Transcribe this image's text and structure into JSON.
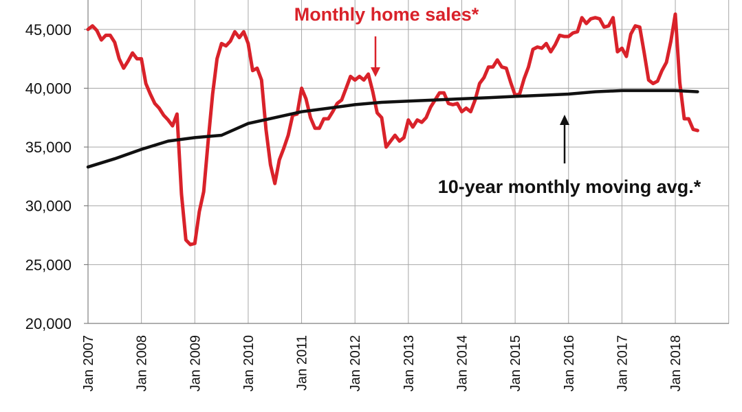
{
  "chart_data": {
    "type": "line",
    "ylim": [
      20000,
      47500
    ],
    "yticks": [
      20000,
      25000,
      30000,
      35000,
      40000,
      45000
    ],
    "ytick_labels": [
      "20,000",
      "25,000",
      "30,000",
      "35,000",
      "40,000",
      "45,000"
    ],
    "xtick_labels": [
      "Jan 2007",
      "Jan 2008",
      "Jan 2009",
      "Jan 2010",
      "Jan 2011",
      "Jan 2012",
      "Jan 2013",
      "Jan 2014",
      "Jan 2015",
      "Jan 2016",
      "Jan 2017",
      "Jan 2018"
    ],
    "grid": true,
    "series": [
      {
        "name": "Monthly home sales*",
        "color": "#d9222a",
        "points": [
          [
            "2007-01",
            45000
          ],
          [
            "2007-02",
            45300
          ],
          [
            "2007-03",
            44900
          ],
          [
            "2007-04",
            44100
          ],
          [
            "2007-05",
            44500
          ],
          [
            "2007-06",
            44500
          ],
          [
            "2007-07",
            43900
          ],
          [
            "2007-08",
            42500
          ],
          [
            "2007-09",
            41700
          ],
          [
            "2007-10",
            42300
          ],
          [
            "2007-11",
            43000
          ],
          [
            "2007-12",
            42500
          ],
          [
            "2008-01",
            42500
          ],
          [
            "2008-02",
            40400
          ],
          [
            "2008-03",
            39500
          ],
          [
            "2008-04",
            38700
          ],
          [
            "2008-05",
            38300
          ],
          [
            "2008-06",
            37700
          ],
          [
            "2008-07",
            37300
          ],
          [
            "2008-08",
            36800
          ],
          [
            "2008-09",
            37800
          ],
          [
            "2008-10",
            31000
          ],
          [
            "2008-11",
            27100
          ],
          [
            "2008-12",
            26700
          ],
          [
            "2009-01",
            26800
          ],
          [
            "2009-02",
            29500
          ],
          [
            "2009-03",
            31200
          ],
          [
            "2009-04",
            35500
          ],
          [
            "2009-05",
            39500
          ],
          [
            "2009-06",
            42500
          ],
          [
            "2009-07",
            43800
          ],
          [
            "2009-08",
            43600
          ],
          [
            "2009-09",
            44000
          ],
          [
            "2009-10",
            44800
          ],
          [
            "2009-11",
            44300
          ],
          [
            "2009-12",
            44800
          ],
          [
            "2010-01",
            43800
          ],
          [
            "2010-02",
            41500
          ],
          [
            "2010-03",
            41700
          ],
          [
            "2010-04",
            40700
          ],
          [
            "2010-05",
            36500
          ],
          [
            "2010-06",
            33500
          ],
          [
            "2010-07",
            31900
          ],
          [
            "2010-08",
            33900
          ],
          [
            "2010-09",
            34900
          ],
          [
            "2010-10",
            36000
          ],
          [
            "2010-11",
            37700
          ],
          [
            "2010-12",
            37800
          ],
          [
            "2011-01",
            40000
          ],
          [
            "2011-02",
            39100
          ],
          [
            "2011-03",
            37500
          ],
          [
            "2011-04",
            36600
          ],
          [
            "2011-05",
            36600
          ],
          [
            "2011-06",
            37400
          ],
          [
            "2011-07",
            37400
          ],
          [
            "2011-08",
            38000
          ],
          [
            "2011-09",
            38700
          ],
          [
            "2011-10",
            39000
          ],
          [
            "2011-11",
            40000
          ],
          [
            "2011-12",
            41000
          ],
          [
            "2012-01",
            40700
          ],
          [
            "2012-02",
            41000
          ],
          [
            "2012-03",
            40700
          ],
          [
            "2012-04",
            41200
          ],
          [
            "2012-05",
            39700
          ],
          [
            "2012-06",
            37900
          ],
          [
            "2012-07",
            37500
          ],
          [
            "2012-08",
            35000
          ],
          [
            "2012-09",
            35500
          ],
          [
            "2012-10",
            36000
          ],
          [
            "2012-11",
            35500
          ],
          [
            "2012-12",
            35800
          ],
          [
            "2013-01",
            37300
          ],
          [
            "2013-02",
            36700
          ],
          [
            "2013-03",
            37300
          ],
          [
            "2013-04",
            37100
          ],
          [
            "2013-05",
            37500
          ],
          [
            "2013-06",
            38400
          ],
          [
            "2013-07",
            39000
          ],
          [
            "2013-08",
            39600
          ],
          [
            "2013-09",
            39600
          ],
          [
            "2013-10",
            38700
          ],
          [
            "2013-11",
            38600
          ],
          [
            "2013-12",
            38700
          ],
          [
            "2014-01",
            38000
          ],
          [
            "2014-02",
            38300
          ],
          [
            "2014-03",
            38000
          ],
          [
            "2014-04",
            39000
          ],
          [
            "2014-05",
            40400
          ],
          [
            "2014-06",
            40900
          ],
          [
            "2014-07",
            41800
          ],
          [
            "2014-08",
            41800
          ],
          [
            "2014-09",
            42400
          ],
          [
            "2014-10",
            41800
          ],
          [
            "2014-11",
            41700
          ],
          [
            "2014-12",
            40500
          ],
          [
            "2015-01",
            39400
          ],
          [
            "2015-02",
            39500
          ],
          [
            "2015-03",
            40800
          ],
          [
            "2015-04",
            41800
          ],
          [
            "2015-05",
            43300
          ],
          [
            "2015-06",
            43500
          ],
          [
            "2015-07",
            43400
          ],
          [
            "2015-08",
            43800
          ],
          [
            "2015-09",
            43100
          ],
          [
            "2015-10",
            43700
          ],
          [
            "2015-11",
            44500
          ],
          [
            "2015-12",
            44400
          ],
          [
            "2016-01",
            44400
          ],
          [
            "2016-02",
            44700
          ],
          [
            "2016-03",
            44800
          ],
          [
            "2016-04",
            46000
          ],
          [
            "2016-05",
            45500
          ],
          [
            "2016-06",
            45900
          ],
          [
            "2016-07",
            46000
          ],
          [
            "2016-08",
            45900
          ],
          [
            "2016-09",
            45200
          ],
          [
            "2016-10",
            45300
          ],
          [
            "2016-11",
            46000
          ],
          [
            "2016-12",
            43100
          ],
          [
            "2017-01",
            43400
          ],
          [
            "2017-02",
            42700
          ],
          [
            "2017-03",
            44600
          ],
          [
            "2017-04",
            45300
          ],
          [
            "2017-05",
            45200
          ],
          [
            "2017-06",
            43000
          ],
          [
            "2017-07",
            40700
          ],
          [
            "2017-08",
            40400
          ],
          [
            "2017-09",
            40600
          ],
          [
            "2017-10",
            41500
          ],
          [
            "2017-11",
            42200
          ],
          [
            "2017-12",
            44000
          ],
          [
            "2018-01",
            46300
          ],
          [
            "2018-02",
            40500
          ],
          [
            "2018-03",
            37400
          ],
          [
            "2018-04",
            37400
          ],
          [
            "2018-05",
            36500
          ],
          [
            "2018-06",
            36400
          ]
        ]
      },
      {
        "name": "10-year monthly moving avg.*",
        "color": "#111111",
        "points": [
          [
            "2007-01",
            33300
          ],
          [
            "2007-07",
            34000
          ],
          [
            "2008-01",
            34800
          ],
          [
            "2008-07",
            35500
          ],
          [
            "2009-01",
            35800
          ],
          [
            "2009-07",
            36000
          ],
          [
            "2010-01",
            37000
          ],
          [
            "2010-07",
            37500
          ],
          [
            "2011-01",
            38000
          ],
          [
            "2011-07",
            38300
          ],
          [
            "2012-01",
            38600
          ],
          [
            "2012-07",
            38800
          ],
          [
            "2013-01",
            38900
          ],
          [
            "2013-07",
            39000
          ],
          [
            "2014-01",
            39100
          ],
          [
            "2014-07",
            39200
          ],
          [
            "2015-01",
            39300
          ],
          [
            "2015-07",
            39400
          ],
          [
            "2016-01",
            39500
          ],
          [
            "2016-07",
            39700
          ],
          [
            "2017-01",
            39800
          ],
          [
            "2017-07",
            39800
          ],
          [
            "2018-01",
            39800
          ],
          [
            "2018-06",
            39700
          ]
        ]
      }
    ]
  },
  "annotations": {
    "red_label": "Monthly home sales*",
    "black_label": "10-year monthly moving avg.*"
  }
}
